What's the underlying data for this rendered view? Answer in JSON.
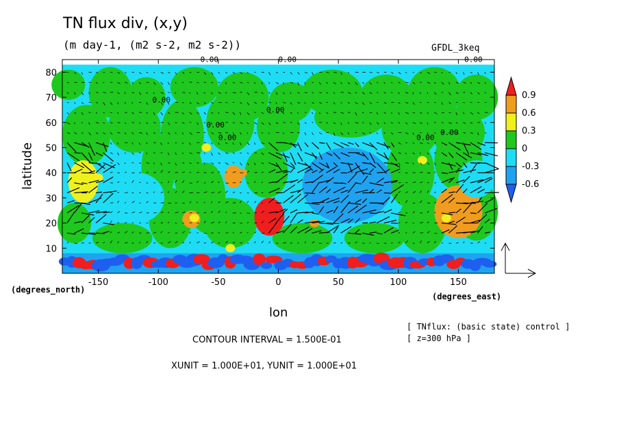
{
  "title": "TN flux div, (x,y)",
  "subtitle": "(m day-1, (m2 s-2, m2 s-2))",
  "model": "GFDL_3keq",
  "colors": {
    "blue_dark": "#1f5ff0",
    "blue_mid": "#1fa3f0",
    "cyan": "#1fdcf5",
    "green": "#1ec81e",
    "yellow": "#f0f01e",
    "orange": "#f09c1e",
    "red": "#f01e1e"
  },
  "chart_data": {
    "type": "heatmap",
    "title": "TN flux div, (x,y)",
    "subtitle": "(m day-1, (m2 s-2, m2 s-2))",
    "xlabel": "lon",
    "ylabel": "latitude",
    "xunit_label": "(degrees_east)",
    "yunit_label": "(degrees_north)",
    "xlim": [
      -180,
      180
    ],
    "ylim": [
      0,
      85
    ],
    "xticks": [
      -150,
      -100,
      -50,
      0,
      50,
      100,
      150
    ],
    "xtick_labels": [
      "-150",
      "-100",
      "-50",
      "0",
      "50",
      "100",
      "150"
    ],
    "yticks": [
      10,
      20,
      30,
      40,
      50,
      60,
      70,
      80
    ],
    "ytick_labels": [
      "10",
      "20",
      "30",
      "40",
      "50",
      "60",
      "70",
      "80"
    ],
    "colorbar": {
      "levels": [
        "0.9",
        "0.6",
        "0.3",
        "0",
        "-0.3",
        "-0.6"
      ],
      "colors": [
        "#f01e1e",
        "#f09c1e",
        "#f0f01e",
        "#1ec81e",
        "#1fdcf5",
        "#1fa3f0",
        "#1f5ff0"
      ]
    },
    "contour_labels": [
      "0.00",
      "0.00",
      "0.00",
      "0.00",
      "0.00",
      "0.00",
      "0.00",
      "0.00",
      "0.00"
    ],
    "contour_interval": "CONTOUR INTERVAL = 1.500E-01",
    "vector_units": "XUNIT = 1.000E+01, YUNIT = 1.000E+01",
    "notes": [
      "[ TNflux: (basic state) control ]",
      "[ z=300 hPa ]"
    ],
    "regions": [
      {
        "lon": [
          -180,
          180
        ],
        "lat": [
          0,
          8
        ],
        "value": -0.6
      },
      {
        "lon": [
          -175,
          -150
        ],
        "lat": [
          28,
          45
        ],
        "value": 0.3
      },
      {
        "lon": [
          -140,
          -95
        ],
        "lat": [
          20,
          40
        ],
        "value": -0.3
      },
      {
        "lon": [
          -80,
          -65
        ],
        "lat": [
          18,
          25
        ],
        "value": 0.6
      },
      {
        "lon": [
          -45,
          -30
        ],
        "lat": [
          34,
          43
        ],
        "value": 0.6
      },
      {
        "lon": [
          -20,
          5
        ],
        "lat": [
          15,
          30
        ],
        "value": 0.9
      },
      {
        "lon": [
          20,
          95
        ],
        "lat": [
          20,
          50
        ],
        "value": -0.6
      },
      {
        "lon": [
          130,
          170
        ],
        "lat": [
          14,
          35
        ],
        "value": 0.6
      },
      {
        "lon": [
          150,
          180
        ],
        "lat": [
          30,
          45
        ],
        "value": -0.3
      }
    ]
  }
}
